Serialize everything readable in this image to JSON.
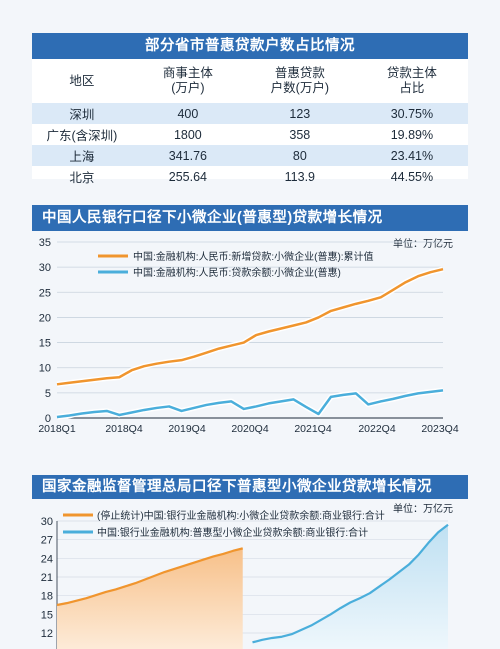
{
  "table": {
    "title": "部分省市普惠贷款户数占比情况",
    "headers": [
      {
        "l1": "地区",
        "l2": ""
      },
      {
        "l1": "商事主体",
        "l2": "(万户)"
      },
      {
        "l1": "普惠贷款",
        "l2": "户数(万户)"
      },
      {
        "l1": "贷款主体",
        "l2": "占比"
      }
    ],
    "rows": [
      [
        "深圳",
        "400",
        "123",
        "30.75%"
      ],
      [
        "广东(含深圳)",
        "1800",
        "358",
        "19.89%"
      ],
      [
        "上海",
        "341.76",
        "80",
        "23.41%"
      ],
      [
        "北京",
        "255.64",
        "113.9",
        "44.55%"
      ]
    ],
    "header_color": "#2e6db4",
    "row_shade": "#dbe9f7"
  },
  "chart_data": [
    {
      "type": "line",
      "title": "中国人民银行口径下小微企业(普惠型)贷款增长情况",
      "unit": "单位：万亿元",
      "x_ticks": [
        "2018Q1",
        "2018Q4",
        "2019Q4",
        "2020Q4",
        "2021Q4",
        "2022Q4",
        "2023Q4"
      ],
      "ylim": [
        0,
        35
      ],
      "yticks": [
        0,
        5,
        10,
        15,
        20,
        25,
        30,
        35
      ],
      "grid": true,
      "legend_position": "top-left",
      "series": [
        {
          "name": "中国:金融机构:人民币:新增贷款:小微企业(普惠):累计值",
          "color": "#f0952e",
          "values": [
            6.7,
            7.0,
            7.3,
            7.6,
            7.9,
            8.1,
            9.5,
            10.3,
            10.8,
            11.2,
            11.5,
            12.2,
            13.0,
            13.8,
            14.4,
            15.0,
            16.5,
            17.2,
            17.8,
            18.4,
            19.0,
            20.0,
            21.3,
            22.0,
            22.7,
            23.3,
            24.0,
            25.5,
            27.0,
            28.2,
            29.0,
            29.6
          ]
        },
        {
          "name": "中国:金融机构:人民币:贷款余额:小微企业(普惠)",
          "color": "#4aaedb",
          "values": [
            0.2,
            0.5,
            0.9,
            1.2,
            1.4,
            0.6,
            1.1,
            1.6,
            2.0,
            2.3,
            1.4,
            2.0,
            2.6,
            3.0,
            3.3,
            1.8,
            2.3,
            2.9,
            3.3,
            3.7,
            2.2,
            0.8,
            4.2,
            4.6,
            4.9,
            2.7,
            3.3,
            3.8,
            4.4,
            4.9,
            5.2,
            5.5
          ]
        }
      ]
    },
    {
      "type": "area",
      "title": "国家金融监督管理总局口径下普惠型小微企业贷款增长情况",
      "unit": "单位：万亿元",
      "ylim": [
        12,
        30
      ],
      "yticks": [
        12,
        15,
        18,
        21,
        24,
        27,
        30
      ],
      "legend_position": "top-left",
      "series": [
        {
          "name": "(停止统计)中国:银行业金融机构:小微企业贷款余额:商业银行:合计",
          "color": "#f0952e",
          "x": [
            0,
            1,
            2,
            3,
            4,
            5,
            6,
            7,
            8,
            9,
            10,
            11,
            12,
            13,
            14,
            15,
            16,
            17,
            18,
            19
          ],
          "values": [
            16.5,
            16.8,
            17.2,
            17.6,
            18.1,
            18.6,
            19.0,
            19.5,
            20.0,
            20.6,
            21.2,
            21.8,
            22.3,
            22.8,
            23.3,
            23.8,
            24.3,
            24.7,
            25.2,
            25.6
          ]
        },
        {
          "name": "中国:银行业金融机构:普惠型小微企业贷款余额:商业银行:合计",
          "color": "#4aaedb",
          "x": [
            20,
            21,
            22,
            23,
            24,
            25,
            26,
            27,
            28,
            29,
            30,
            31,
            32,
            33,
            34,
            35,
            36,
            37,
            38,
            39,
            40
          ],
          "values": [
            10.5,
            10.9,
            11.2,
            11.4,
            11.8,
            12.5,
            13.2,
            14.1,
            15.0,
            16.0,
            16.9,
            17.6,
            18.4,
            19.5,
            20.6,
            21.8,
            23.0,
            24.6,
            26.5,
            28.2,
            29.4
          ]
        }
      ]
    }
  ]
}
